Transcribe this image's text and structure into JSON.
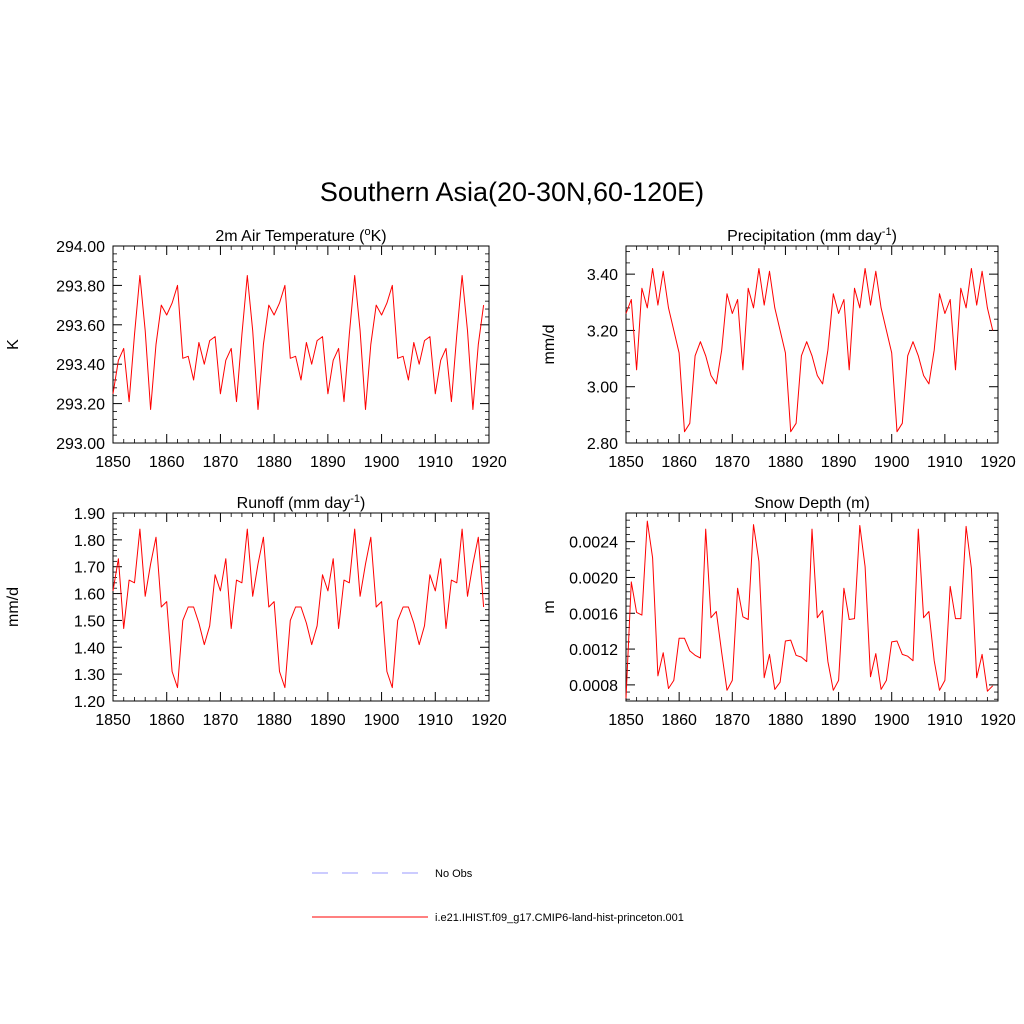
{
  "figure": {
    "title": "Southern Asia(20-30N,60-120E)"
  },
  "colors": {
    "model": "#ff0000",
    "obs": "#9999ff",
    "axis": "#000000"
  },
  "legend": {
    "placement": "bottom-center",
    "entries": [
      {
        "name": "No Obs",
        "style": "dashed",
        "color": "#9999ff"
      },
      {
        "name": "i.e21.IHIST.f09_g17.CMIP6-land-hist-princeton.001",
        "style": "solid",
        "color": "#ff0000"
      }
    ]
  },
  "chart_data": [
    {
      "id": "tsa",
      "type": "line",
      "title": "2m Air Temperature (",
      "title_sup": "o",
      "title_end": "K)",
      "xlabel": "",
      "ylabel": "K",
      "xlim": [
        1850,
        1920
      ],
      "ylim": [
        293.0,
        294.0
      ],
      "xticks": [
        1850,
        1860,
        1870,
        1880,
        1890,
        1900,
        1910,
        1920
      ],
      "yticks": [
        "293.00",
        "293.20",
        "293.40",
        "293.60",
        "293.80",
        "294.00"
      ],
      "grid": false,
      "series": [
        {
          "x_start": 1850,
          "values": [
            293.25,
            293.42,
            293.48,
            293.21,
            293.55,
            293.85,
            293.57,
            293.17,
            293.5,
            293.7,
            293.65,
            293.71,
            293.8,
            293.43,
            293.44,
            293.32,
            293.51,
            293.4,
            293.52,
            293.54,
            293.25,
            293.42,
            293.48,
            293.21,
            293.55,
            293.85,
            293.57,
            293.17,
            293.5,
            293.7,
            293.65,
            293.71,
            293.8,
            293.43,
            293.44,
            293.32,
            293.51,
            293.4,
            293.52,
            293.54,
            293.25,
            293.42,
            293.48,
            293.21,
            293.55,
            293.85,
            293.57,
            293.17,
            293.5,
            293.7,
            293.65,
            293.71,
            293.8,
            293.43,
            293.44,
            293.32,
            293.51,
            293.4,
            293.52,
            293.54,
            293.25,
            293.42,
            293.48,
            293.21,
            293.55,
            293.85,
            293.57,
            293.17,
            293.5,
            293.7
          ]
        }
      ]
    },
    {
      "id": "prec",
      "type": "line",
      "title": "Precipitation (mm day",
      "title_sup": "-1",
      "title_end": ")",
      "xlabel": "",
      "ylabel": "mm/d",
      "xlim": [
        1850,
        1920
      ],
      "ylim": [
        2.8,
        3.5
      ],
      "xticks": [
        1850,
        1860,
        1870,
        1880,
        1890,
        1900,
        1910,
        1920
      ],
      "yticks": [
        "2.80",
        "3.00",
        "3.20",
        "3.40"
      ],
      "grid": false,
      "series": [
        {
          "x_start": 1850,
          "values": [
            3.26,
            3.31,
            3.06,
            3.35,
            3.28,
            3.42,
            3.29,
            3.41,
            3.28,
            3.2,
            3.12,
            2.84,
            2.87,
            3.11,
            3.16,
            3.11,
            3.04,
            3.01,
            3.13,
            3.33,
            3.26,
            3.31,
            3.06,
            3.35,
            3.28,
            3.42,
            3.29,
            3.41,
            3.28,
            3.2,
            3.12,
            2.84,
            2.87,
            3.11,
            3.16,
            3.11,
            3.04,
            3.01,
            3.13,
            3.33,
            3.26,
            3.31,
            3.06,
            3.35,
            3.28,
            3.42,
            3.29,
            3.41,
            3.28,
            3.2,
            3.12,
            2.84,
            2.87,
            3.11,
            3.16,
            3.11,
            3.04,
            3.01,
            3.13,
            3.33,
            3.26,
            3.31,
            3.06,
            3.35,
            3.28,
            3.42,
            3.29,
            3.41,
            3.28,
            3.2
          ]
        }
      ]
    },
    {
      "id": "runoff",
      "type": "line",
      "title": "Runoff (mm day",
      "title_sup": "-1",
      "title_end": ")",
      "xlabel": "",
      "ylabel": "mm/d",
      "xlim": [
        1850,
        1920
      ],
      "ylim": [
        1.2,
        1.9
      ],
      "xticks": [
        1850,
        1860,
        1870,
        1880,
        1890,
        1900,
        1910,
        1920
      ],
      "yticks": [
        "1.20",
        "1.30",
        "1.40",
        "1.50",
        "1.60",
        "1.70",
        "1.80",
        "1.90"
      ],
      "grid": false,
      "series": [
        {
          "x_start": 1850,
          "values": [
            1.61,
            1.73,
            1.47,
            1.65,
            1.64,
            1.84,
            1.59,
            1.71,
            1.81,
            1.55,
            1.57,
            1.31,
            1.25,
            1.5,
            1.55,
            1.55,
            1.49,
            1.41,
            1.48,
            1.67,
            1.61,
            1.73,
            1.47,
            1.65,
            1.64,
            1.84,
            1.59,
            1.71,
            1.81,
            1.55,
            1.57,
            1.31,
            1.25,
            1.5,
            1.55,
            1.55,
            1.49,
            1.41,
            1.48,
            1.67,
            1.61,
            1.73,
            1.47,
            1.65,
            1.64,
            1.84,
            1.59,
            1.71,
            1.81,
            1.55,
            1.57,
            1.31,
            1.25,
            1.5,
            1.55,
            1.55,
            1.49,
            1.41,
            1.48,
            1.67,
            1.61,
            1.73,
            1.47,
            1.65,
            1.64,
            1.84,
            1.59,
            1.71,
            1.81,
            1.55
          ]
        }
      ]
    },
    {
      "id": "snowdp",
      "type": "line",
      "title": "Snow Depth (m)",
      "title_sup": "",
      "title_end": "",
      "xlabel": "",
      "ylabel": "m",
      "xlim": [
        1850,
        1920
      ],
      "ylim": [
        0.00062,
        0.00272
      ],
      "xticks": [
        1850,
        1860,
        1870,
        1880,
        1890,
        1900,
        1910,
        1920
      ],
      "yticks": [
        "0.0008",
        "0.0012",
        "0.0016",
        "0.0020",
        "0.0024"
      ],
      "ytick_values": [
        0.0008,
        0.0012,
        0.0016,
        0.002,
        0.0024
      ],
      "grid": false,
      "series": [
        {
          "x_start": 1850,
          "values": [
            0.00065,
            0.00195,
            0.00161,
            0.00158,
            0.00263,
            0.00222,
            0.0009,
            0.00116,
            0.00076,
            0.00085,
            0.00132,
            0.00132,
            0.00118,
            0.00113,
            0.0011,
            0.00254,
            0.00155,
            0.00162,
            0.00116,
            0.00074,
            0.00085,
            0.00188,
            0.00156,
            0.00153,
            0.00259,
            0.00218,
            0.00088,
            0.00114,
            0.00075,
            0.00083,
            0.00129,
            0.0013,
            0.00113,
            0.00111,
            0.00106,
            0.00254,
            0.00155,
            0.00163,
            0.00106,
            0.00074,
            0.00085,
            0.00188,
            0.00153,
            0.00154,
            0.00258,
            0.00212,
            0.00089,
            0.00115,
            0.00075,
            0.00085,
            0.00128,
            0.00129,
            0.00114,
            0.00112,
            0.00107,
            0.00254,
            0.00155,
            0.00162,
            0.00107,
            0.00074,
            0.00085,
            0.0019,
            0.00154,
            0.00154,
            0.00257,
            0.0021,
            0.00088,
            0.00114,
            0.00073,
            0.00079
          ]
        }
      ]
    }
  ]
}
